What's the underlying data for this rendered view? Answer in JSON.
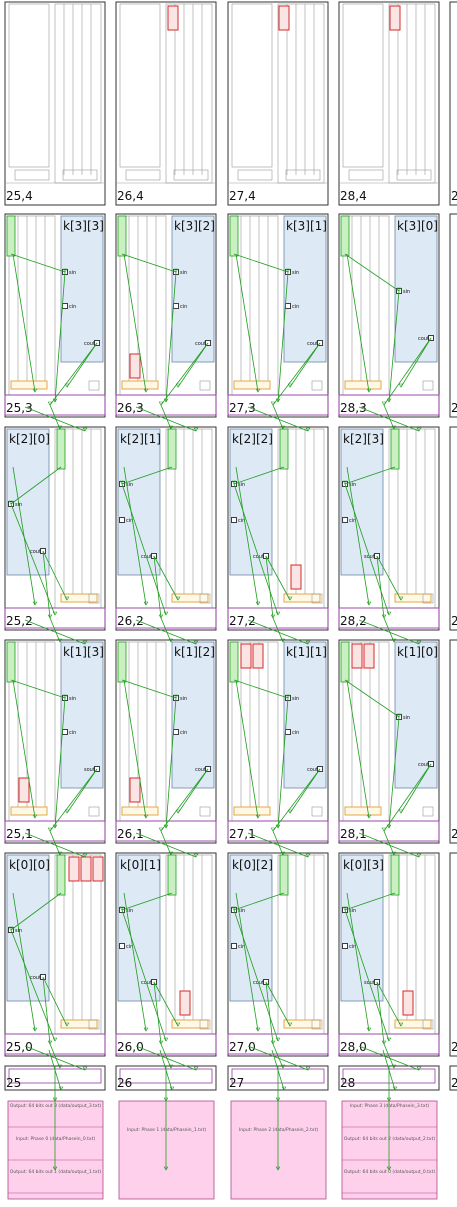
{
  "columns": [
    "25",
    "26",
    "27",
    "28"
  ],
  "tiles": [
    {
      "row": 4,
      "col": 0,
      "coord": "25,4",
      "kernel": "",
      "flip": false,
      "ports": [],
      "red_blocks": 0
    },
    {
      "row": 4,
      "col": 1,
      "coord": "26,4",
      "kernel": "",
      "flip": false,
      "ports": [],
      "red_blocks": 1
    },
    {
      "row": 4,
      "col": 2,
      "coord": "27,4",
      "kernel": "",
      "flip": false,
      "ports": [],
      "red_blocks": 1
    },
    {
      "row": 4,
      "col": 3,
      "coord": "28,4",
      "kernel": "",
      "flip": false,
      "ports": [],
      "red_blocks": 1
    },
    {
      "row": 3,
      "col": 0,
      "coord": "25,3",
      "kernel": "k[3][3]",
      "flip": true,
      "ports": [
        "sin",
        "cin",
        "cout"
      ],
      "red_blocks": 0
    },
    {
      "row": 3,
      "col": 1,
      "coord": "26,3",
      "kernel": "k[3][2]",
      "flip": true,
      "ports": [
        "sin",
        "cin",
        "cout"
      ],
      "red_blocks": 1
    },
    {
      "row": 3,
      "col": 2,
      "coord": "27,3",
      "kernel": "k[3][1]",
      "flip": true,
      "ports": [
        "sin",
        "cin",
        "cout"
      ],
      "red_blocks": 0
    },
    {
      "row": 3,
      "col": 3,
      "coord": "28,3",
      "kernel": "k[3][0]",
      "flip": true,
      "ports": [
        "sin",
        "cout"
      ],
      "red_blocks": 0
    },
    {
      "row": 2,
      "col": 0,
      "coord": "25,2",
      "kernel": "k[2][0]",
      "flip": false,
      "ports": [
        "sin",
        "cout"
      ],
      "red_blocks": 0
    },
    {
      "row": 2,
      "col": 1,
      "coord": "26,2",
      "kernel": "k[2][1]",
      "flip": false,
      "ports": [
        "sin",
        "cin",
        "cout"
      ],
      "red_blocks": 0
    },
    {
      "row": 2,
      "col": 2,
      "coord": "27,2",
      "kernel": "k[2][2]",
      "flip": false,
      "ports": [
        "sin",
        "cin",
        "cout"
      ],
      "red_blocks": 1
    },
    {
      "row": 2,
      "col": 3,
      "coord": "28,2",
      "kernel": "k[2][3]",
      "flip": false,
      "ports": [
        "sin",
        "cin",
        "sout"
      ],
      "red_blocks": 0
    },
    {
      "row": 1,
      "col": 0,
      "coord": "25,1",
      "kernel": "k[1][3]",
      "flip": true,
      "ports": [
        "sin",
        "cin",
        "sout"
      ],
      "red_blocks": 1
    },
    {
      "row": 1,
      "col": 1,
      "coord": "26,1",
      "kernel": "k[1][2]",
      "flip": true,
      "ports": [
        "sin",
        "cin",
        "cout"
      ],
      "red_blocks": 1
    },
    {
      "row": 1,
      "col": 2,
      "coord": "27,1",
      "kernel": "k[1][1]",
      "flip": true,
      "ports": [
        "sin",
        "cin",
        "cout"
      ],
      "red_blocks": 2
    },
    {
      "row": 1,
      "col": 3,
      "coord": "28,1",
      "kernel": "k[1][0]",
      "flip": true,
      "ports": [
        "sin",
        "cout"
      ],
      "red_blocks": 2
    },
    {
      "row": 0,
      "col": 0,
      "coord": "25,0",
      "kernel": "k[0][0]",
      "flip": false,
      "ports": [
        "sin",
        "cout"
      ],
      "red_blocks": 3
    },
    {
      "row": 0,
      "col": 1,
      "coord": "26,0",
      "kernel": "k[0][1]",
      "flip": false,
      "ports": [
        "sin",
        "cin",
        "cout"
      ],
      "red_blocks": 1
    },
    {
      "row": 0,
      "col": 2,
      "coord": "27,0",
      "kernel": "k[0][2]",
      "flip": false,
      "ports": [
        "sin",
        "cin",
        "cout"
      ],
      "red_blocks": 0
    },
    {
      "row": 0,
      "col": 3,
      "coord": "28,0",
      "kernel": "k[0][3]",
      "flip": false,
      "ports": [
        "sin",
        "cin",
        "sout"
      ],
      "red_blocks": 1
    }
  ],
  "edge_partial_labels": [
    "2",
    "2",
    "2",
    "2",
    "2",
    "2"
  ],
  "shim_labels": [
    "25",
    "26",
    "27",
    "28",
    "2"
  ],
  "plio": [
    {
      "col": 0,
      "labels": [
        "Output: 64 bits out 3 (data/output_3.txt)",
        "Input: Phase 0 (data/Phasein_0.txt)",
        "Output: 64 bits out 1 (data/output_1.txt)"
      ]
    },
    {
      "col": 1,
      "labels": [
        "Input: Phase 1 (data/Phasein_1.txt)"
      ]
    },
    {
      "col": 2,
      "labels": [
        "Input: Phase 2 (data/Phasein_2.txt)"
      ]
    },
    {
      "col": 3,
      "labels": [
        "Input: Phase 3 (data/Phasein_3.txt)",
        "Output: 64 bits out 2 (data/output_2.txt)",
        "Output: 64 bits out 0 (data/output_0.txt)"
      ]
    }
  ],
  "colors": {
    "tile_border": "#333333",
    "inner_line": "#9a9a9a",
    "kernel_fill": "#dde9f5",
    "kernel_border": "#6d87a8",
    "net": "#1f9e1f",
    "buffer_fill": "#c8f0c0",
    "dma_orange": "#e0a030",
    "lock_purple": "#9a3aa8",
    "red_block": "#d42a2a",
    "plio_fill": "#ffd0ec",
    "plio_border": "#b04a8a"
  }
}
